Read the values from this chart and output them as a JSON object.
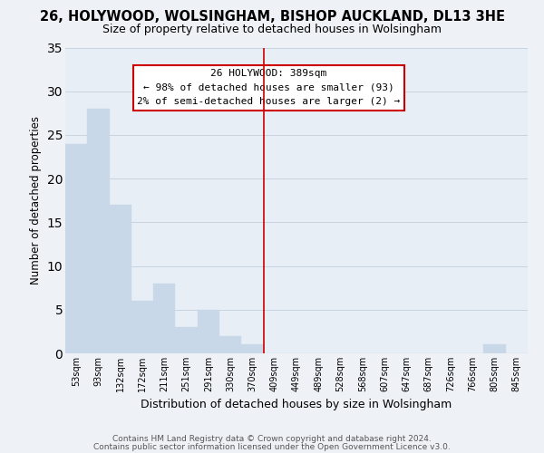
{
  "title": "26, HOLYWOOD, WOLSINGHAM, BISHOP AUCKLAND, DL13 3HE",
  "subtitle": "Size of property relative to detached houses in Wolsingham",
  "xlabel": "Distribution of detached houses by size in Wolsingham",
  "ylabel": "Number of detached properties",
  "bar_color": "#c8d8e8",
  "bar_edge_color": "#c8d8e8",
  "categories": [
    "53sqm",
    "93sqm",
    "132sqm",
    "172sqm",
    "211sqm",
    "251sqm",
    "291sqm",
    "330sqm",
    "370sqm",
    "409sqm",
    "449sqm",
    "489sqm",
    "528sqm",
    "568sqm",
    "607sqm",
    "647sqm",
    "687sqm",
    "726sqm",
    "766sqm",
    "805sqm",
    "845sqm"
  ],
  "values": [
    24,
    28,
    17,
    6,
    8,
    3,
    5,
    2,
    1,
    0,
    0,
    0,
    0,
    0,
    0,
    0,
    0,
    0,
    0,
    1,
    0
  ],
  "ylim": [
    0,
    35
  ],
  "yticks": [
    0,
    5,
    10,
    15,
    20,
    25,
    30,
    35
  ],
  "vline_x": 8.5,
  "vline_color": "#cc0000",
  "annotation_title": "26 HOLYWOOD: 389sqm",
  "annotation_line1": "← 98% of detached houses are smaller (93)",
  "annotation_line2": "2% of semi-detached houses are larger (2) →",
  "footer_line1": "Contains HM Land Registry data © Crown copyright and database right 2024.",
  "footer_line2": "Contains public sector information licensed under the Open Government Licence v3.0.",
  "background_color": "#eef2f7",
  "plot_background_color": "#e8eef5",
  "grid_color": "#c8d4e0"
}
